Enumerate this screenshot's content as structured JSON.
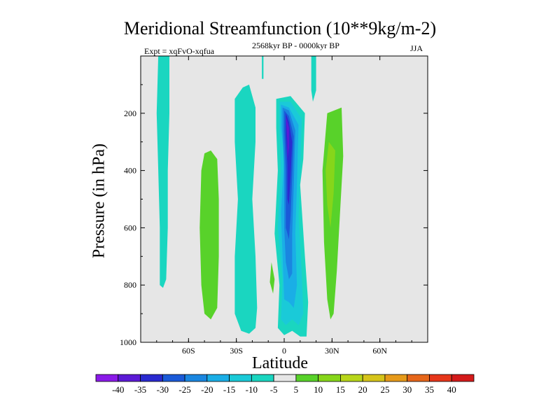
{
  "chart_data": {
    "type": "contour",
    "title": "Meridional Streamfunction (10**9kg/m-2)",
    "left_label": "Expt = xqFvO-xqfua",
    "center_label": "2568kyr BP - 0000kyr BP",
    "right_label": "JJA",
    "xlabel": "Latitude",
    "ylabel": "Pressure (in hPa)",
    "xlim": [
      -90,
      90
    ],
    "ylim": [
      1000,
      0
    ],
    "x_ticks": [
      {
        "value": -60,
        "label": "60S"
      },
      {
        "value": -30,
        "label": "30S"
      },
      {
        "value": 0,
        "label": "0"
      },
      {
        "value": 30,
        "label": "30N"
      },
      {
        "value": 60,
        "label": "60N"
      }
    ],
    "y_ticks": [
      {
        "value": 200,
        "label": "200"
      },
      {
        "value": 400,
        "label": "400"
      },
      {
        "value": 600,
        "label": "600"
      },
      {
        "value": 800,
        "label": "800"
      },
      {
        "value": 1000,
        "label": "1000"
      }
    ],
    "background_color": "#e6e6e6",
    "colorbar": {
      "levels": [
        "-40",
        "-35",
        "-30",
        "-25",
        "-20",
        "-15",
        "-10",
        "-5",
        "5",
        "10",
        "15",
        "20",
        "25",
        "30",
        "35",
        "40"
      ],
      "colors": [
        "#8a1ae8",
        "#5c1ad6",
        "#2a2ad0",
        "#1a5ad8",
        "#1a86e0",
        "#1aaee6",
        "#1acad8",
        "#1ad6c0",
        "#e6e6e6",
        "#58d22a",
        "#86d61a",
        "#b8d61a",
        "#d6c41a",
        "#e69a1a",
        "#e6661a",
        "#e6361a",
        "#d41a1a"
      ]
    },
    "regions": [
      {
        "name": "band-70s-neg",
        "level": -5,
        "color": "#1ad6c0",
        "points": [
          [
            -79,
            0
          ],
          [
            -72,
            0
          ],
          [
            -72,
            200
          ],
          [
            -73,
            400
          ],
          [
            -73,
            600
          ],
          [
            -74,
            780
          ],
          [
            -76,
            810
          ],
          [
            -78,
            800
          ],
          [
            -78,
            600
          ],
          [
            -79,
            400
          ],
          [
            -80,
            200
          ]
        ]
      },
      {
        "name": "band-45s-pos",
        "level": 5,
        "color": "#58d22a",
        "points": [
          [
            -50,
            340
          ],
          [
            -46,
            330
          ],
          [
            -42,
            360
          ],
          [
            -41,
            500
          ],
          [
            -41,
            700
          ],
          [
            -42,
            880
          ],
          [
            -46,
            920
          ],
          [
            -50,
            900
          ],
          [
            -52,
            800
          ],
          [
            -53,
            600
          ],
          [
            -52,
            400
          ]
        ]
      },
      {
        "name": "band-25s-neg",
        "level": -5,
        "color": "#1ad6c0",
        "points": [
          [
            -26,
            110
          ],
          [
            -22,
            100
          ],
          [
            -18,
            180
          ],
          [
            -18,
            300
          ],
          [
            -20,
            500
          ],
          [
            -18,
            700
          ],
          [
            -17,
            880
          ],
          [
            -18,
            950
          ],
          [
            -22,
            970
          ],
          [
            -27,
            960
          ],
          [
            -31,
            900
          ],
          [
            -31,
            700
          ],
          [
            -29,
            500
          ],
          [
            -31,
            300
          ],
          [
            -31,
            150
          ]
        ]
      },
      {
        "name": "band-15s-neg-small",
        "level": -5,
        "color": "#1ad6c0",
        "points": [
          [
            -14,
            0
          ],
          [
            -13,
            0
          ],
          [
            -13,
            80
          ],
          [
            -14,
            80
          ]
        ]
      },
      {
        "name": "blob-10s-pos",
        "level": 5,
        "color": "#58d22a",
        "points": [
          [
            -8,
            720
          ],
          [
            -6,
            780
          ],
          [
            -7,
            830
          ],
          [
            -9,
            790
          ]
        ]
      },
      {
        "name": "band-eq-outer",
        "level": -5,
        "color": "#1ad6c0",
        "points": [
          [
            -5,
            150
          ],
          [
            4,
            140
          ],
          [
            13,
            200
          ],
          [
            12,
            360
          ],
          [
            10,
            450
          ],
          [
            13,
            700
          ],
          [
            15,
            860
          ],
          [
            14,
            980
          ],
          [
            10,
            980
          ],
          [
            5,
            960
          ],
          [
            0,
            975
          ],
          [
            -4,
            950
          ],
          [
            -3,
            800
          ],
          [
            -6,
            620
          ],
          [
            -4,
            400
          ],
          [
            -5,
            250
          ]
        ]
      },
      {
        "name": "band-eq-10",
        "level": -10,
        "color": "#1acad8",
        "points": [
          [
            -3,
            160
          ],
          [
            4,
            160
          ],
          [
            11,
            220
          ],
          [
            10,
            400
          ],
          [
            9,
            560
          ],
          [
            11,
            760
          ],
          [
            12,
            900
          ],
          [
            9,
            940
          ],
          [
            5,
            920
          ],
          [
            1,
            940
          ],
          [
            -2,
            920
          ],
          [
            -1,
            780
          ],
          [
            -4,
            600
          ],
          [
            -2,
            400
          ],
          [
            -3,
            250
          ]
        ]
      },
      {
        "name": "band-eq-15",
        "level": -15,
        "color": "#1aaee6",
        "points": [
          [
            -2,
            170
          ],
          [
            3,
            180
          ],
          [
            9,
            240
          ],
          [
            8,
            450
          ],
          [
            7,
            620
          ],
          [
            8,
            800
          ],
          [
            6,
            880
          ],
          [
            3,
            860
          ],
          [
            0,
            850
          ],
          [
            -1,
            700
          ],
          [
            -2,
            550
          ],
          [
            0,
            350
          ],
          [
            -2,
            250
          ]
        ]
      },
      {
        "name": "band-eq-20",
        "level": -20,
        "color": "#1a86e0",
        "points": [
          [
            -1,
            180
          ],
          [
            3,
            190
          ],
          [
            7,
            260
          ],
          [
            6,
            450
          ],
          [
            5,
            620
          ],
          [
            5,
            760
          ],
          [
            3,
            780
          ],
          [
            1,
            720
          ],
          [
            0,
            600
          ],
          [
            0,
            400
          ],
          [
            -1,
            260
          ]
        ]
      },
      {
        "name": "band-eq-25",
        "level": -25,
        "color": "#1a5ad8",
        "points": [
          [
            0,
            190
          ],
          [
            3,
            210
          ],
          [
            6,
            280
          ],
          [
            5,
            420
          ],
          [
            4,
            560
          ],
          [
            3,
            640
          ],
          [
            1,
            600
          ],
          [
            1,
            400
          ],
          [
            0,
            260
          ]
        ]
      },
      {
        "name": "band-eq-30",
        "level": -30,
        "color": "#2a2ad0",
        "points": [
          [
            1,
            200
          ],
          [
            3,
            230
          ],
          [
            5,
            300
          ],
          [
            4,
            420
          ],
          [
            3,
            520
          ],
          [
            2,
            500
          ],
          [
            2,
            380
          ],
          [
            1,
            280
          ]
        ]
      },
      {
        "name": "band-eq-35",
        "level": -35,
        "color": "#5c1ad6",
        "points": [
          [
            1,
            210
          ],
          [
            3,
            250
          ],
          [
            3,
            320
          ],
          [
            2,
            360
          ],
          [
            2,
            300
          ]
        ]
      },
      {
        "name": "band-18n-neg-top",
        "level": -5,
        "color": "#1ad6c0",
        "points": [
          [
            17,
            0
          ],
          [
            20,
            0
          ],
          [
            20,
            120
          ],
          [
            18,
            160
          ],
          [
            17,
            120
          ]
        ]
      },
      {
        "name": "band-30n-pos",
        "level": 5,
        "color": "#58d22a",
        "points": [
          [
            27,
            200
          ],
          [
            36,
            180
          ],
          [
            37,
            350
          ],
          [
            35,
            550
          ],
          [
            33,
            750
          ],
          [
            31,
            900
          ],
          [
            29,
            920
          ],
          [
            27,
            850
          ],
          [
            25,
            650
          ],
          [
            24,
            400
          ]
        ]
      },
      {
        "name": "band-30n-10",
        "level": 10,
        "color": "#86d61a",
        "points": [
          [
            28,
            300
          ],
          [
            32,
            330
          ],
          [
            31,
            480
          ],
          [
            29,
            600
          ],
          [
            27,
            520
          ],
          [
            26,
            400
          ]
        ]
      }
    ]
  }
}
